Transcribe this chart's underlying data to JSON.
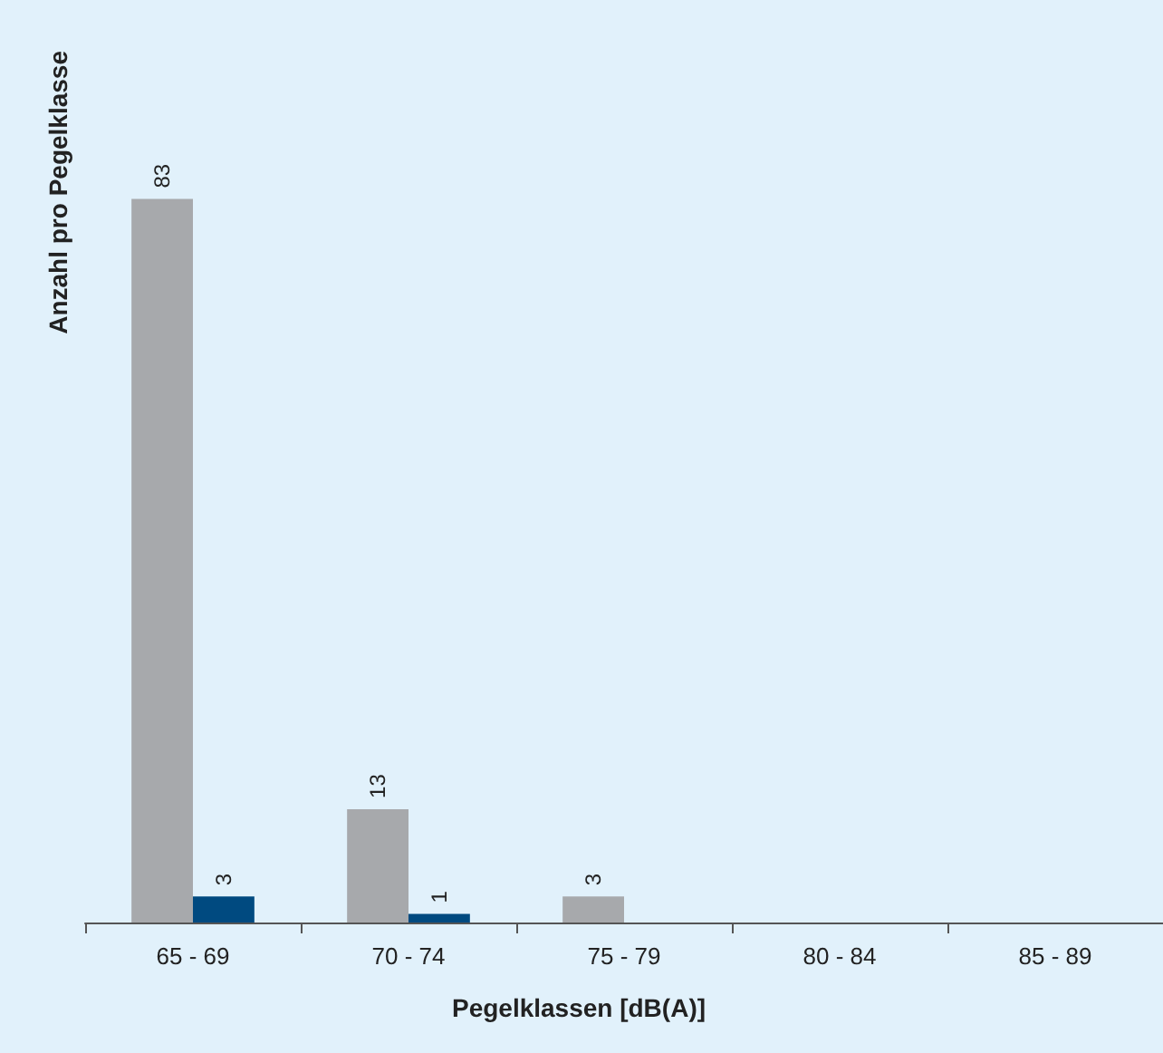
{
  "chart_data": {
    "type": "bar",
    "xlabel": "Pegelklassen [dB(A)]",
    "ylabel": "Anzahl pro Pegelklasse",
    "categories": [
      "65 - 69",
      "70 - 74",
      "75 - 79",
      "80 - 84",
      "85 - 89"
    ],
    "series": [
      {
        "color": "#a7a9ac",
        "values": [
          83,
          13,
          3,
          null,
          null
        ]
      },
      {
        "color": "#004a80",
        "values": [
          3,
          1,
          null,
          null,
          null
        ]
      }
    ],
    "data_labels": true,
    "tick_labels": "x",
    "grid": false
  }
}
